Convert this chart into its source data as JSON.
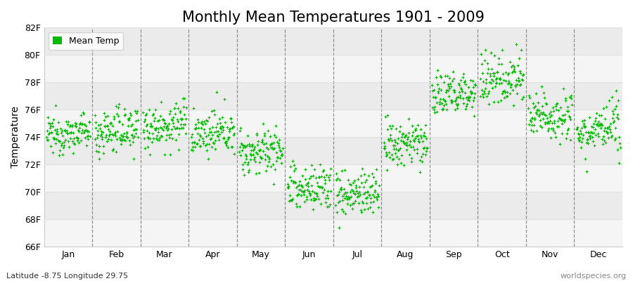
{
  "title": "Monthly Mean Temperatures 1901 - 2009",
  "ylabel": "Temperature",
  "ylim": [
    66,
    82
  ],
  "yticks": [
    66,
    68,
    70,
    72,
    74,
    76,
    78,
    80,
    82
  ],
  "ytick_labels": [
    "66F",
    "68F",
    "70F",
    "72F",
    "74F",
    "76F",
    "78F",
    "80F",
    "82F"
  ],
  "months": [
    "Jan",
    "Feb",
    "Mar",
    "Apr",
    "May",
    "Jun",
    "Jul",
    "Aug",
    "Sep",
    "Oct",
    "Nov",
    "Dec"
  ],
  "month_means": [
    74.3,
    74.5,
    74.9,
    74.3,
    73.0,
    70.3,
    69.9,
    73.5,
    77.2,
    78.3,
    75.6,
    74.5
  ],
  "month_stds": [
    0.65,
    0.85,
    0.85,
    0.75,
    0.85,
    0.9,
    0.85,
    0.85,
    0.85,
    0.95,
    0.9,
    0.85
  ],
  "month_trends": [
    0.003,
    0.004,
    0.003,
    0.003,
    0.002,
    0.002,
    0.002,
    0.004,
    0.005,
    0.005,
    0.004,
    0.003
  ],
  "n_years": 109,
  "start_year": 1901,
  "dot_color": "#00bb00",
  "dot_size": 5,
  "background_color": "#ffffff",
  "band_color_light": "#f5f5f5",
  "band_color_dark": "#ebebeb",
  "grid_color": "#e0e0e0",
  "title_fontsize": 15,
  "axis_fontsize": 10,
  "tick_fontsize": 9,
  "legend_label": "Mean Temp",
  "footer_left": "Latitude -8.75 Longitude 29.75",
  "footer_right": "worldspecies.org",
  "footer_fontsize": 8,
  "dashed_line_color": "#777777"
}
